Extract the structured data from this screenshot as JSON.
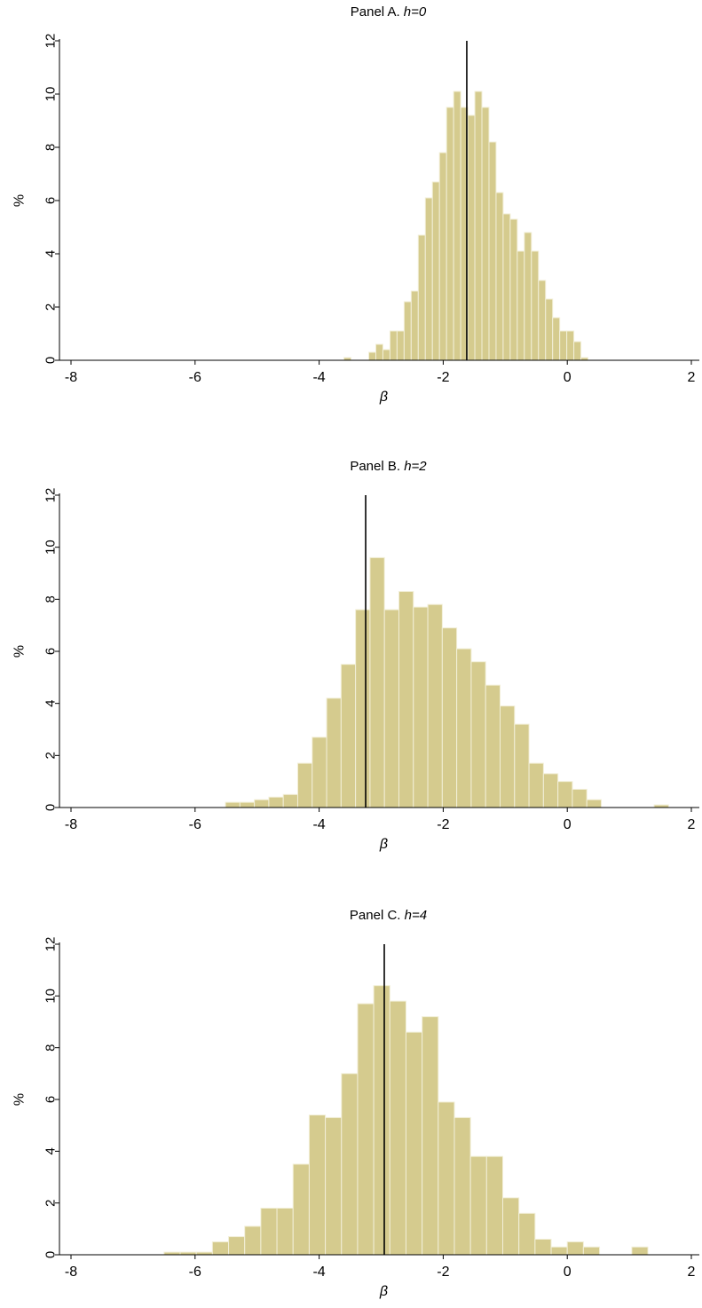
{
  "figure": {
    "bar_color": "#d5cb8e",
    "bar_edge": "#f2efd8",
    "line_color": "#000000"
  },
  "chart_data": [
    {
      "type": "bar",
      "title_prefix": "Panel A. ",
      "title_italic": "h=0",
      "xlabel": "β",
      "ylabel": "%",
      "xlim": [
        -8.1,
        2.1
      ],
      "ylim": [
        0,
        12.2
      ],
      "xticks": [
        -8,
        -6,
        -4,
        -2,
        0,
        2
      ],
      "yticks": [
        0,
        2,
        4,
        6,
        8,
        10,
        12
      ],
      "bin_width": 0.114,
      "bins_left": [
        -3.6,
        -3.2,
        -3.086,
        -2.972,
        -2.858,
        -2.744,
        -2.63,
        -2.516,
        -2.402,
        -2.288,
        -2.174,
        -2.06,
        -1.946,
        -1.832,
        -1.718,
        -1.604,
        -1.49,
        -1.376,
        -1.262,
        -1.148,
        -1.034,
        -0.92,
        -0.806,
        -0.692,
        -0.578,
        -0.464,
        -0.35,
        -0.236,
        -0.122,
        -0.008,
        0.106,
        0.22
      ],
      "values": [
        0.1,
        0.3,
        0.6,
        0.4,
        1.1,
        1.1,
        2.2,
        2.6,
        4.7,
        6.1,
        6.7,
        7.8,
        9.5,
        10.1,
        9.5,
        9.2,
        10.1,
        9.5,
        8.2,
        6.3,
        5.5,
        5.3,
        4.1,
        4.8,
        4.1,
        3.0,
        2.3,
        1.6,
        1.1,
        1.1,
        0.7,
        0.1
      ],
      "extra_bins": [
        {
          "left": 0.106,
          "value": 0.1
        },
        {
          "left": 0.22,
          "value": 0.2
        }
      ],
      "vline": -1.62
    },
    {
      "type": "bar",
      "title_prefix": "Panel B. ",
      "title_italic": "h=2",
      "xlabel": "β",
      "ylabel": "%",
      "xlim": [
        -8.1,
        2.1
      ],
      "ylim": [
        0,
        12.2
      ],
      "xticks": [
        -8,
        -6,
        -4,
        -2,
        0,
        2
      ],
      "yticks": [
        0,
        2,
        4,
        6,
        8,
        10,
        12
      ],
      "bin_width": 0.233,
      "bins_left": [
        -5.51,
        -5.277,
        -5.044,
        -4.811,
        -4.578,
        -4.345,
        -4.112,
        -3.879,
        -3.646,
        -3.413,
        -3.18,
        -2.947,
        -2.714,
        -2.481,
        -2.248,
        -2.015,
        -1.782,
        -1.549,
        -1.316,
        -1.083,
        -0.85,
        -0.617,
        -0.384,
        -0.151,
        0.082,
        0.315,
        0.548,
        1.4
      ],
      "values": [
        0.2,
        0.2,
        0.3,
        0.4,
        0.5,
        1.7,
        2.7,
        4.2,
        5.5,
        7.6,
        9.6,
        7.6,
        8.3,
        7.7,
        7.8,
        6.9,
        6.1,
        5.6,
        4.7,
        3.9,
        3.2,
        1.7,
        1.3,
        1.0,
        0.7,
        0.3,
        0.0,
        0.1
      ],
      "extra_bins": [],
      "vline": -3.25
    },
    {
      "type": "bar",
      "title_prefix": "Panel C. ",
      "title_italic": "h=4",
      "xlabel": "β",
      "ylabel": "%",
      "xlim": [
        -8.1,
        2.1
      ],
      "ylim": [
        0,
        12.2
      ],
      "xticks": [
        -8,
        -6,
        -4,
        -2,
        0,
        2
      ],
      "yticks": [
        0,
        2,
        4,
        6,
        8,
        10,
        12
      ],
      "bin_width": 0.26,
      "bins_left": [
        -6.5,
        -6.24,
        -5.98,
        -5.72,
        -5.46,
        -5.2,
        -4.94,
        -4.68,
        -4.42,
        -4.16,
        -3.9,
        -3.64,
        -3.38,
        -3.12,
        -2.86,
        -2.6,
        -2.34,
        -2.08,
        -1.82,
        -1.56,
        -1.3,
        -1.04,
        -0.78,
        -0.52,
        -0.26,
        0.0,
        0.26,
        0.52,
        0.78,
        1.04
      ],
      "values": [
        0.1,
        0.1,
        0.1,
        0.5,
        0.7,
        1.1,
        1.8,
        1.8,
        3.5,
        5.4,
        5.3,
        7.0,
        9.7,
        10.4,
        9.8,
        8.6,
        9.2,
        5.9,
        5.3,
        3.8,
        3.8,
        2.2,
        1.6,
        0.6,
        0.3,
        0.5,
        0.3,
        0.0,
        0.0,
        0.3
      ],
      "extra_bins": [],
      "vline": -2.95
    }
  ]
}
